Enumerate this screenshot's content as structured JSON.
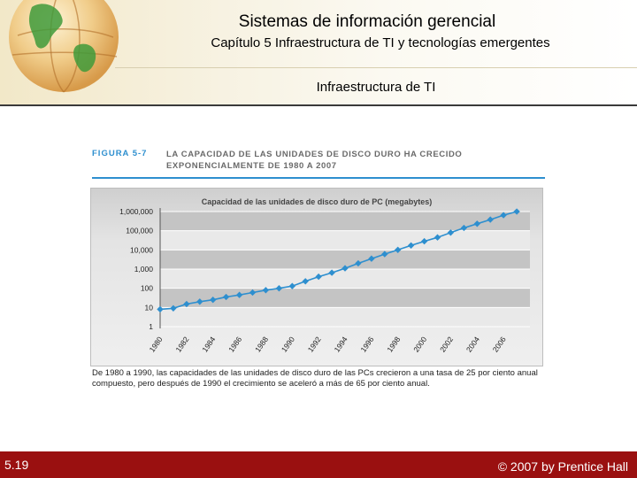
{
  "header": {
    "title": "Sistemas de información gerencial",
    "subtitle": "Capítulo 5 Infraestructura de TI y tecnologías emergentes",
    "section": "Infraestructura de TI"
  },
  "figure": {
    "label": "FIGURA 5-7",
    "title": "LA CAPACIDAD DE LAS UNIDADES DE DISCO DURO HA CRECIDO EXPONENCIALMENTE DE 1980 A 2007",
    "caption": "De 1980 a 1990, las capacidades de las unidades de disco duro de las PCs crecieron a una tasa de 25 por ciento anual compuesto, pero después de 1990 el crecimiento se aceleró a más de 65 por ciento anual."
  },
  "chart_data": {
    "type": "line",
    "title": "Capacidad de las unidades de disco duro de PC (megabytes)",
    "xlabel": "",
    "ylabel": "",
    "y_scale": "log",
    "ylim": [
      1,
      1000000
    ],
    "y_ticks": [
      "1",
      "10",
      "100",
      "1,000",
      "10,000",
      "100,000",
      "1,000,000"
    ],
    "x_ticks": [
      "1980",
      "1982",
      "1984",
      "1986",
      "1988",
      "1990",
      "1992",
      "1994",
      "1996",
      "1998",
      "2000",
      "2002",
      "2004",
      "2006"
    ],
    "xlim": [
      1980,
      2008
    ],
    "grid": true,
    "series": [
      {
        "x": [
          1980,
          1981,
          1982,
          1983,
          1984,
          1985,
          1986,
          1987,
          1988,
          1989,
          1990,
          1991,
          1992,
          1993,
          1994,
          1995,
          1996,
          1997,
          1998,
          1999,
          2000,
          2001,
          2002,
          2003,
          2004,
          2005,
          2006,
          2007
        ],
        "y": [
          8,
          9,
          15,
          20,
          25,
          35,
          45,
          60,
          80,
          100,
          130,
          230,
          400,
          650,
          1100,
          2000,
          3500,
          6000,
          10000,
          17000,
          28000,
          45000,
          80000,
          140000,
          230000,
          380000,
          650000,
          1000000
        ]
      }
    ],
    "colors": {
      "line": "#2e8fcf",
      "band_dark": "#c4c4c4",
      "band_light": "#e9e9e9"
    }
  },
  "footer": {
    "slide_number": "5.19",
    "copyright": "© 2007 by Prentice Hall"
  }
}
